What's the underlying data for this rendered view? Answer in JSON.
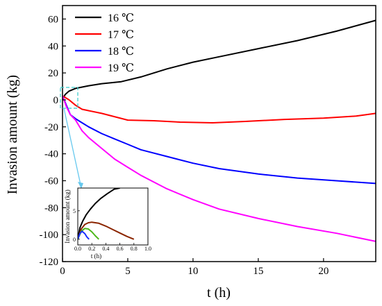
{
  "chart_data": {
    "type": "line",
    "xlabel": "t (h)",
    "ylabel": "Invasion amount (kg)",
    "xlim": [
      0,
      24
    ],
    "ylim": [
      -120,
      70
    ],
    "x_ticks": [
      "0",
      "5",
      "10",
      "15",
      "20"
    ],
    "y_ticks": [
      "60",
      "40",
      "20",
      "0",
      "-20",
      "-40",
      "-60",
      "-80",
      "-100",
      "-120"
    ],
    "legend_position": "top-left",
    "series": [
      {
        "name": "16 ℃",
        "color": "#000000",
        "x": [
          0,
          0.2,
          0.5,
          1,
          2,
          3,
          4.5,
          6,
          8,
          10,
          12,
          15,
          18,
          21,
          24
        ],
        "y": [
          0,
          4,
          6.5,
          8.5,
          10.5,
          12,
          13.5,
          17,
          23,
          28,
          32,
          38,
          44,
          51,
          59
        ]
      },
      {
        "name": "17 ℃",
        "color": "#ff0000",
        "x": [
          0,
          0.5,
          1,
          1.5,
          3,
          5,
          7,
          9,
          11.5,
          14,
          17,
          20,
          22.5,
          24
        ],
        "y": [
          3,
          0,
          -4,
          -7,
          -10,
          -15,
          -15.5,
          -16.5,
          -17,
          -16,
          -14.5,
          -13.5,
          -12,
          -10
        ]
      },
      {
        "name": "18 ℃",
        "color": "#0000ff",
        "x": [
          0,
          0.3,
          0.6,
          1,
          1.5,
          2,
          3,
          4,
          5,
          6,
          8,
          10,
          12,
          15,
          18,
          21,
          24
        ],
        "y": [
          3,
          -4,
          -11,
          -14,
          -17,
          -20,
          -25,
          -29,
          -33,
          -37,
          -42,
          -47,
          -51,
          -55,
          -58,
          -60,
          -62
        ]
      },
      {
        "name": "19 ℃",
        "color": "#ff00ff",
        "x": [
          0,
          0.3,
          0.6,
          1,
          1.5,
          2,
          3,
          4,
          5,
          6,
          8,
          10,
          12,
          15,
          18,
          21,
          24
        ],
        "y": [
          3,
          -5,
          -11,
          -15,
          -23,
          -28,
          -36,
          -44,
          -50,
          -56,
          -66,
          -74,
          -81,
          -88,
          -94,
          -99,
          -105
        ]
      }
    ],
    "inset": {
      "xlabel": "t (h)",
      "ylabel": "Invasion amount (kg)",
      "xlim": [
        0,
        1.0
      ],
      "ylim": [
        -1,
        9
      ],
      "x_ticks": [
        "0.0",
        "0.2",
        "0.4",
        "0.6",
        "0.8",
        "1.0"
      ],
      "y_ticks": [
        "5",
        "0"
      ],
      "series": [
        {
          "color": "#000000",
          "x": [
            0,
            0.03,
            0.07,
            0.12,
            0.18,
            0.25,
            0.33,
            0.42,
            0.52,
            0.6
          ],
          "y": [
            0,
            2.0,
            3.2,
            4.3,
            5.3,
            6.3,
            7.2,
            8.0,
            8.8,
            9.0
          ]
        },
        {
          "color": "#8b2500",
          "x": [
            0,
            0.05,
            0.1,
            0.15,
            0.2,
            0.3,
            0.4,
            0.5,
            0.6,
            0.7,
            0.8
          ],
          "y": [
            0,
            1.8,
            2.6,
            2.9,
            3.0,
            2.8,
            2.3,
            1.7,
            1.1,
            0.5,
            0
          ]
        },
        {
          "color": "#4db81a",
          "x": [
            0,
            0.05,
            0.1,
            0.15,
            0.2,
            0.25,
            0.3
          ],
          "y": [
            0,
            1.4,
            1.9,
            1.8,
            1.3,
            0.6,
            0
          ]
        },
        {
          "color": "#1a2fff",
          "x": [
            0,
            0.03,
            0.06,
            0.1,
            0.13,
            0.16
          ],
          "y": [
            0,
            1.0,
            1.4,
            1.0,
            0.4,
            0
          ]
        }
      ]
    }
  }
}
